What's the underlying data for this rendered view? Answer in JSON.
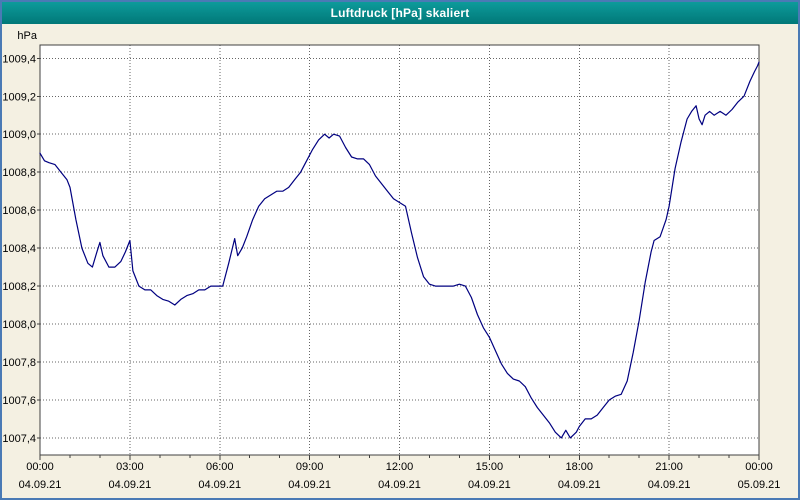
{
  "window": {
    "title": "Luftdruck [hPa] skaliert"
  },
  "colors": {
    "title_bar": "#008b8b",
    "title_text": "#ffffff",
    "window_border": "#4a7ab5",
    "background": "#f4f0e2",
    "plot_background": "#ffffff",
    "grid": "#666666",
    "axis": "#404040",
    "line": "#000080",
    "tick_text": "#000000"
  },
  "chart_data": {
    "type": "line",
    "title": "Luftdruck [hPa] skaliert",
    "xlabel": "",
    "ylabel": "hPa",
    "xlim": [
      0,
      24
    ],
    "ylim": [
      1007.31,
      1009.47
    ],
    "grid": "dotted",
    "legend": "none",
    "y_ticks": [
      {
        "value": 1009.4,
        "label": "1009,4"
      },
      {
        "value": 1009.2,
        "label": "1009,2"
      },
      {
        "value": 1009.0,
        "label": "1009,0"
      },
      {
        "value": 1008.8,
        "label": "1008,8"
      },
      {
        "value": 1008.6,
        "label": "1008,6"
      },
      {
        "value": 1008.4,
        "label": "1008,4"
      },
      {
        "value": 1008.2,
        "label": "1008,2"
      },
      {
        "value": 1008.0,
        "label": "1008,0"
      },
      {
        "value": 1007.8,
        "label": "1007,8"
      },
      {
        "value": 1007.6,
        "label": "1007,6"
      },
      {
        "value": 1007.4,
        "label": "1007,4"
      }
    ],
    "x_ticks": [
      {
        "hour": 0,
        "time": "00:00",
        "date": "04.09.21"
      },
      {
        "hour": 3,
        "time": "03:00",
        "date": "04.09.21"
      },
      {
        "hour": 6,
        "time": "06:00",
        "date": "04.09.21"
      },
      {
        "hour": 9,
        "time": "09:00",
        "date": "04.09.21"
      },
      {
        "hour": 12,
        "time": "12:00",
        "date": "04.09.21"
      },
      {
        "hour": 15,
        "time": "15:00",
        "date": "04.09.21"
      },
      {
        "hour": 18,
        "time": "18:00",
        "date": "04.09.21"
      },
      {
        "hour": 21,
        "time": "21:00",
        "date": "04.09.21"
      },
      {
        "hour": 24,
        "time": "00:00",
        "date": "05.09.21"
      }
    ],
    "x_minor_tick_every_hours": 1,
    "series": [
      {
        "name": "Luftdruck",
        "unit": "hPa",
        "color": "#000080",
        "points": [
          [
            0.0,
            1008.9
          ],
          [
            0.15,
            1008.86
          ],
          [
            0.3,
            1008.85
          ],
          [
            0.5,
            1008.84
          ],
          [
            0.7,
            1008.8
          ],
          [
            0.9,
            1008.76
          ],
          [
            1.0,
            1008.72
          ],
          [
            1.2,
            1008.55
          ],
          [
            1.4,
            1008.4
          ],
          [
            1.6,
            1008.32
          ],
          [
            1.75,
            1008.3
          ],
          [
            1.9,
            1008.38
          ],
          [
            2.0,
            1008.43
          ],
          [
            2.1,
            1008.36
          ],
          [
            2.3,
            1008.3
          ],
          [
            2.5,
            1008.3
          ],
          [
            2.7,
            1008.33
          ],
          [
            2.85,
            1008.38
          ],
          [
            3.0,
            1008.44
          ],
          [
            3.1,
            1008.28
          ],
          [
            3.3,
            1008.2
          ],
          [
            3.5,
            1008.18
          ],
          [
            3.7,
            1008.18
          ],
          [
            3.9,
            1008.15
          ],
          [
            4.1,
            1008.13
          ],
          [
            4.3,
            1008.12
          ],
          [
            4.5,
            1008.1
          ],
          [
            4.7,
            1008.13
          ],
          [
            4.9,
            1008.15
          ],
          [
            5.1,
            1008.16
          ],
          [
            5.3,
            1008.18
          ],
          [
            5.5,
            1008.18
          ],
          [
            5.7,
            1008.2
          ],
          [
            5.9,
            1008.2
          ],
          [
            6.1,
            1008.2
          ],
          [
            6.3,
            1008.32
          ],
          [
            6.5,
            1008.45
          ],
          [
            6.6,
            1008.36
          ],
          [
            6.75,
            1008.4
          ],
          [
            6.9,
            1008.46
          ],
          [
            7.1,
            1008.55
          ],
          [
            7.3,
            1008.62
          ],
          [
            7.5,
            1008.66
          ],
          [
            7.7,
            1008.68
          ],
          [
            7.9,
            1008.7
          ],
          [
            8.1,
            1008.7
          ],
          [
            8.3,
            1008.72
          ],
          [
            8.5,
            1008.76
          ],
          [
            8.7,
            1008.8
          ],
          [
            8.9,
            1008.86
          ],
          [
            9.1,
            1008.92
          ],
          [
            9.3,
            1008.97
          ],
          [
            9.5,
            1009.0
          ],
          [
            9.65,
            1008.98
          ],
          [
            9.8,
            1009.0
          ],
          [
            10.0,
            1008.99
          ],
          [
            10.2,
            1008.93
          ],
          [
            10.4,
            1008.88
          ],
          [
            10.6,
            1008.87
          ],
          [
            10.8,
            1008.87
          ],
          [
            11.0,
            1008.84
          ],
          [
            11.2,
            1008.78
          ],
          [
            11.4,
            1008.74
          ],
          [
            11.6,
            1008.7
          ],
          [
            11.8,
            1008.66
          ],
          [
            12.0,
            1008.64
          ],
          [
            12.2,
            1008.62
          ],
          [
            12.4,
            1008.48
          ],
          [
            12.6,
            1008.35
          ],
          [
            12.8,
            1008.25
          ],
          [
            13.0,
            1008.21
          ],
          [
            13.2,
            1008.2
          ],
          [
            13.5,
            1008.2
          ],
          [
            13.8,
            1008.2
          ],
          [
            14.0,
            1008.21
          ],
          [
            14.2,
            1008.2
          ],
          [
            14.4,
            1008.14
          ],
          [
            14.6,
            1008.05
          ],
          [
            14.8,
            1007.98
          ],
          [
            15.0,
            1007.93
          ],
          [
            15.2,
            1007.86
          ],
          [
            15.4,
            1007.79
          ],
          [
            15.6,
            1007.74
          ],
          [
            15.8,
            1007.71
          ],
          [
            16.0,
            1007.7
          ],
          [
            16.2,
            1007.67
          ],
          [
            16.4,
            1007.61
          ],
          [
            16.6,
            1007.56
          ],
          [
            16.8,
            1007.52
          ],
          [
            17.0,
            1007.48
          ],
          [
            17.2,
            1007.43
          ],
          [
            17.4,
            1007.4
          ],
          [
            17.55,
            1007.44
          ],
          [
            17.7,
            1007.4
          ],
          [
            17.9,
            1007.43
          ],
          [
            18.0,
            1007.46
          ],
          [
            18.2,
            1007.5
          ],
          [
            18.4,
            1007.5
          ],
          [
            18.6,
            1007.52
          ],
          [
            18.8,
            1007.56
          ],
          [
            19.0,
            1007.6
          ],
          [
            19.2,
            1007.62
          ],
          [
            19.4,
            1007.63
          ],
          [
            19.6,
            1007.7
          ],
          [
            19.8,
            1007.85
          ],
          [
            20.0,
            1008.02
          ],
          [
            20.2,
            1008.22
          ],
          [
            20.4,
            1008.38
          ],
          [
            20.5,
            1008.44
          ],
          [
            20.7,
            1008.46
          ],
          [
            20.9,
            1008.55
          ],
          [
            21.0,
            1008.62
          ],
          [
            21.2,
            1008.82
          ],
          [
            21.4,
            1008.96
          ],
          [
            21.5,
            1009.02
          ],
          [
            21.6,
            1009.08
          ],
          [
            21.75,
            1009.12
          ],
          [
            21.9,
            1009.15
          ],
          [
            22.0,
            1009.08
          ],
          [
            22.1,
            1009.05
          ],
          [
            22.2,
            1009.1
          ],
          [
            22.35,
            1009.12
          ],
          [
            22.5,
            1009.1
          ],
          [
            22.7,
            1009.12
          ],
          [
            22.9,
            1009.1
          ],
          [
            23.1,
            1009.13
          ],
          [
            23.3,
            1009.17
          ],
          [
            23.5,
            1009.2
          ],
          [
            23.7,
            1009.28
          ],
          [
            23.85,
            1009.33
          ],
          [
            23.95,
            1009.36
          ],
          [
            24.0,
            1009.38
          ]
        ]
      }
    ]
  }
}
